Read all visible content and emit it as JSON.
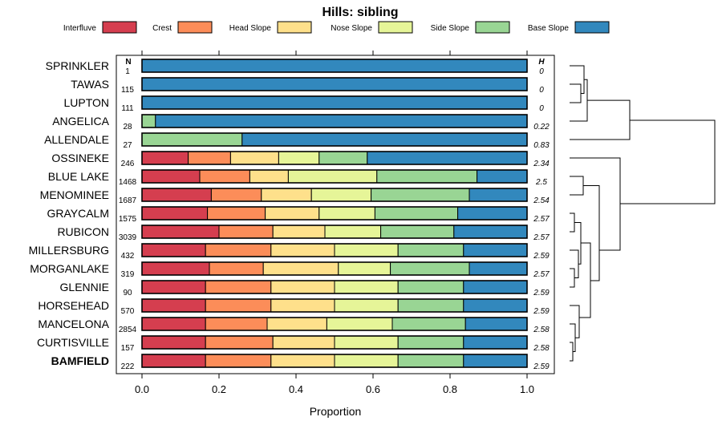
{
  "chart_data": {
    "type": "bar",
    "stacked": true,
    "orientation": "horizontal",
    "title": "Hills: sibling",
    "xlabel": "Proportion",
    "xlim": [
      0,
      1
    ],
    "xticks": [
      "0.0",
      "0.2",
      "0.4",
      "0.6",
      "0.8",
      "1.0"
    ],
    "n_header": "N",
    "h_header": "H",
    "highlight": "BAMFIELD",
    "legend": [
      {
        "name": "Interfluve",
        "color": "#D53E4F"
      },
      {
        "name": "Crest",
        "color": "#FC8D59"
      },
      {
        "name": "Head Slope",
        "color": "#FEE08B"
      },
      {
        "name": "Nose Slope",
        "color": "#E6F598"
      },
      {
        "name": "Side Slope",
        "color": "#99D594"
      },
      {
        "name": "Base Slope",
        "color": "#3288BD"
      }
    ],
    "categories": [
      "SPRINKLER",
      "TAWAS",
      "LUPTON",
      "ANGELICA",
      "ALLENDALE",
      "OSSINEKE",
      "BLUE LAKE",
      "MENOMINEE",
      "GRAYCALM",
      "RUBICON",
      "MILLERSBURG",
      "MORGANLAKE",
      "GLENNIE",
      "HORSEHEAD",
      "MANCELONA",
      "CURTISVILLE",
      "BAMFIELD"
    ],
    "n": [
      "1",
      "115",
      "111",
      "28",
      "27",
      "246",
      "1468",
      "1687",
      "1575",
      "3039",
      "432",
      "319",
      "90",
      "570",
      "2854",
      "157",
      "222"
    ],
    "h": [
      "0",
      "0",
      "0",
      "0.22",
      "0.83",
      "2.34",
      "2.5",
      "2.54",
      "2.57",
      "2.57",
      "2.59",
      "2.57",
      "2.59",
      "2.59",
      "2.58",
      "2.58",
      "2.59"
    ],
    "series": [
      {
        "name": "Interfluve",
        "values": [
          0,
          0,
          0,
          0,
          0,
          0.12,
          0.15,
          0.18,
          0.17,
          0.2,
          0.165,
          0.175,
          0.165,
          0.165,
          0.165,
          0.165,
          0.165
        ]
      },
      {
        "name": "Crest",
        "values": [
          0,
          0,
          0,
          0,
          0,
          0.11,
          0.13,
          0.13,
          0.15,
          0.14,
          0.17,
          0.14,
          0.17,
          0.17,
          0.16,
          0.175,
          0.17
        ]
      },
      {
        "name": "Head Slope",
        "values": [
          0,
          0,
          0,
          0,
          0,
          0.125,
          0.1,
          0.13,
          0.14,
          0.135,
          0.165,
          0.195,
          0.165,
          0.165,
          0.155,
          0.16,
          0.165
        ]
      },
      {
        "name": "Nose Slope",
        "values": [
          0,
          0,
          0,
          0,
          0,
          0.105,
          0.23,
          0.155,
          0.145,
          0.145,
          0.165,
          0.135,
          0.165,
          0.165,
          0.17,
          0.165,
          0.165
        ]
      },
      {
        "name": "Side Slope",
        "values": [
          0,
          0,
          0,
          0.035,
          0.26,
          0.125,
          0.26,
          0.255,
          0.215,
          0.19,
          0.17,
          0.205,
          0.17,
          0.17,
          0.19,
          0.17,
          0.17
        ]
      },
      {
        "name": "Base Slope",
        "values": [
          1,
          1,
          1,
          0.965,
          0.74,
          0.415,
          0.13,
          0.15,
          0.18,
          0.19,
          0.165,
          0.15,
          0.165,
          0.165,
          0.16,
          0.165,
          0.165
        ]
      }
    ]
  }
}
